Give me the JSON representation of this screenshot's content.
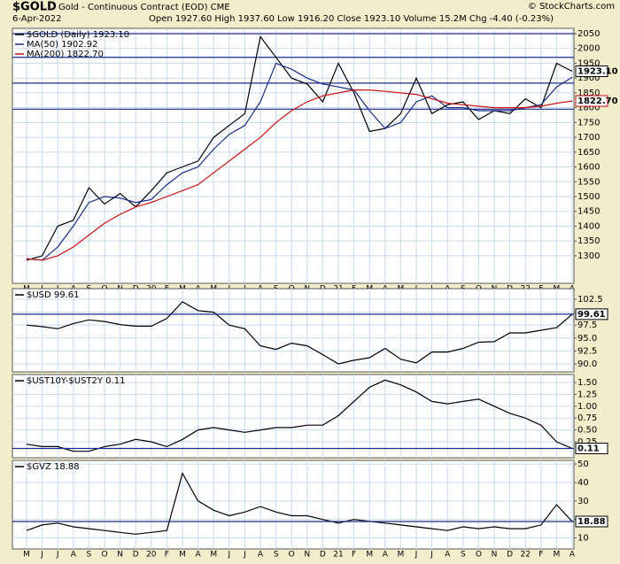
{
  "header": {
    "symbol": "$GOLD",
    "description": "Gold - Continuous Contract (EOD) CME",
    "source": "© StockCharts.com",
    "date": "6-Apr-2022",
    "quote": "Open 1927.60 High 1937.60 Low 1916.20 Close 1923.10 Volume 15.2M Chg -4.40 (-0.23%)"
  },
  "chart_data": [
    {
      "type": "line",
      "categories": [
        "M",
        "J",
        "J",
        "A",
        "S",
        "O",
        "N",
        "D",
        "20",
        "F",
        "M",
        "A",
        "M",
        "J",
        "J",
        "A",
        "S",
        "O",
        "N",
        "D",
        "21",
        "F",
        "M",
        "A",
        "M",
        "J",
        "J",
        "A",
        "S",
        "O",
        "N",
        "D",
        "22",
        "F",
        "M",
        "A"
      ],
      "ylim": [
        1207,
        2068
      ],
      "yticks": [
        1300,
        1350,
        1400,
        1450,
        1500,
        1550,
        1600,
        1650,
        1700,
        1750,
        1800,
        1850,
        1900,
        1950,
        2000,
        2050
      ],
      "levels": [
        2050,
        1970,
        1883,
        1795
      ],
      "grid": true,
      "series": [
        {
          "name": "$GOLD (Daily) 1923.10",
          "color": "#000000",
          "end_label": "1923.10",
          "values": [
            1285,
            1300,
            1400,
            1420,
            1530,
            1475,
            1510,
            1465,
            1520,
            1580,
            1600,
            1620,
            1700,
            1740,
            1780,
            2040,
            1970,
            1900,
            1880,
            1820,
            1950,
            1850,
            1720,
            1730,
            1780,
            1900,
            1780,
            1810,
            1820,
            1760,
            1790,
            1780,
            1830,
            1800,
            1950,
            1923.1
          ]
        },
        {
          "name": "MA(50) 1902.92",
          "color": "#1a2a8a",
          "values": [
            1290,
            1285,
            1330,
            1400,
            1480,
            1500,
            1495,
            1480,
            1490,
            1540,
            1580,
            1600,
            1660,
            1710,
            1740,
            1820,
            1950,
            1930,
            1900,
            1880,
            1870,
            1860,
            1790,
            1730,
            1750,
            1820,
            1840,
            1800,
            1800,
            1790,
            1790,
            1790,
            1800,
            1810,
            1870,
            1902.92
          ]
        },
        {
          "name": "MA(200) 1822.70",
          "color": "#cc1111",
          "end_label": "1822.70",
          "values": [
            1290,
            1285,
            1300,
            1330,
            1370,
            1410,
            1440,
            1465,
            1480,
            1500,
            1520,
            1540,
            1580,
            1620,
            1660,
            1700,
            1750,
            1790,
            1820,
            1840,
            1850,
            1860,
            1860,
            1855,
            1850,
            1845,
            1830,
            1815,
            1810,
            1805,
            1800,
            1800,
            1800,
            1805,
            1815,
            1822.7
          ]
        }
      ]
    },
    {
      "type": "line",
      "ylim": [
        88.46,
        104.55
      ],
      "yticks": [
        {
          "value": 90,
          "label": "90.0"
        },
        92.5,
        {
          "value": 95,
          "label": "95.0"
        },
        97.5,
        {
          "value": 100,
          "label": "100.0"
        },
        102.5
      ],
      "grid": true,
      "series": [
        {
          "name": "$USD 99.61",
          "color": "#000000",
          "end_label": "99.61",
          "values": [
            97.5,
            97.2,
            96.8,
            97.8,
            98.5,
            98.2,
            97.6,
            97.3,
            97.3,
            98.8,
            102.0,
            100.3,
            100.0,
            97.5,
            96.8,
            93.5,
            92.8,
            94.0,
            93.5,
            91.8,
            90.0,
            90.7,
            91.2,
            93.0,
            90.9,
            90.2,
            92.3,
            92.3,
            93.0,
            94.2,
            94.3,
            96.0,
            96.0,
            96.5,
            97.0,
            99.61
          ]
        }
      ]
    },
    {
      "type": "line",
      "ylim": [
        -0.086,
        1.668
      ],
      "yticks": [
        0.25,
        {
          "value": 0.5,
          "label": "0.50"
        },
        0.75,
        {
          "value": 1,
          "label": "1.00"
        },
        1.25,
        {
          "value": 1.5,
          "label": "1.50"
        }
      ],
      "grid": true,
      "series": [
        {
          "name": "$UST10Y-$UST2Y 0.11",
          "color": "#000000",
          "end_label": "0.11",
          "values": [
            0.2,
            0.15,
            0.15,
            0.05,
            0.05,
            0.15,
            0.2,
            0.3,
            0.25,
            0.15,
            0.3,
            0.5,
            0.55,
            0.5,
            0.45,
            0.5,
            0.55,
            0.55,
            0.6,
            0.6,
            0.8,
            1.1,
            1.4,
            1.55,
            1.45,
            1.3,
            1.1,
            1.05,
            1.1,
            1.15,
            1.0,
            0.85,
            0.75,
            0.6,
            0.25,
            0.11
          ]
        }
      ]
    },
    {
      "type": "line",
      "categories": [
        "M",
        "J",
        "J",
        "A",
        "S",
        "O",
        "N",
        "D",
        "20",
        "F",
        "M",
        "A",
        "M",
        "J",
        "J",
        "A",
        "S",
        "O",
        "N",
        "D",
        "21",
        "F",
        "M",
        "A",
        "M",
        "J",
        "J",
        "A",
        "S",
        "O",
        "N",
        "D",
        "22",
        "F",
        "M",
        "A"
      ],
      "ylim": [
        4,
        52
      ],
      "yticks": [
        10,
        20,
        30,
        40,
        50
      ],
      "grid": true,
      "series": [
        {
          "name": "$GVZ 18.88",
          "color": "#000000",
          "end_label": "18.88",
          "values": [
            14,
            17,
            18,
            16,
            15,
            14,
            13,
            12,
            13,
            14,
            45,
            30,
            25,
            22,
            24,
            27,
            24,
            22,
            22,
            20,
            18,
            20,
            19,
            18,
            17,
            16,
            15,
            14,
            16,
            15,
            16,
            15,
            15,
            17,
            28,
            18.88
          ]
        }
      ]
    }
  ]
}
